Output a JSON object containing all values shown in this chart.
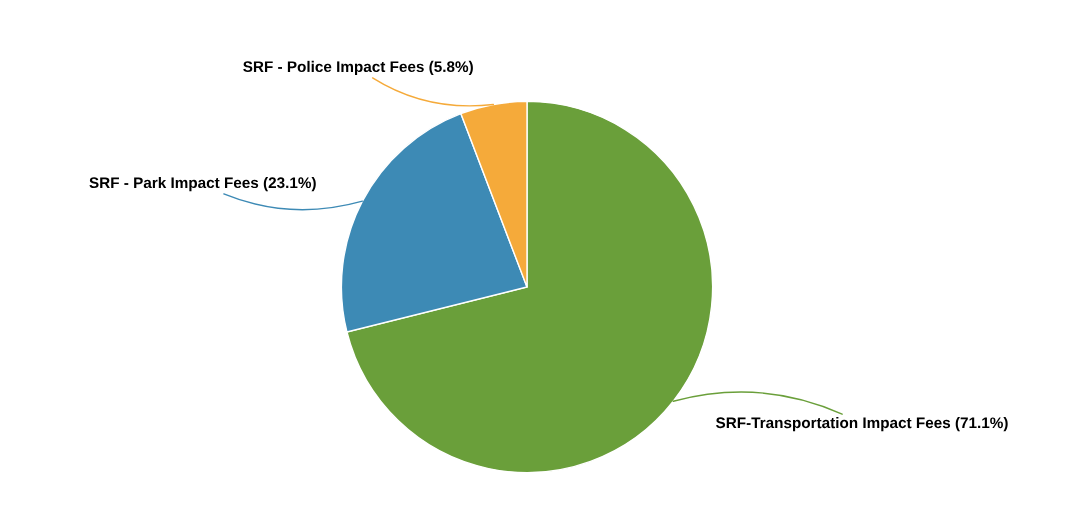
{
  "chart_data": {
    "type": "pie",
    "categories": [
      "SRF-Transportation Impact Fees (71.1%)",
      "SRF - Park Impact Fees (23.1%)",
      "SRF - Police Impact Fees (5.8%)"
    ],
    "values": [
      71.1,
      23.1,
      5.8
    ],
    "colors": [
      "#6a9f3a",
      "#3d8ab5",
      "#f5aa3a"
    ]
  }
}
